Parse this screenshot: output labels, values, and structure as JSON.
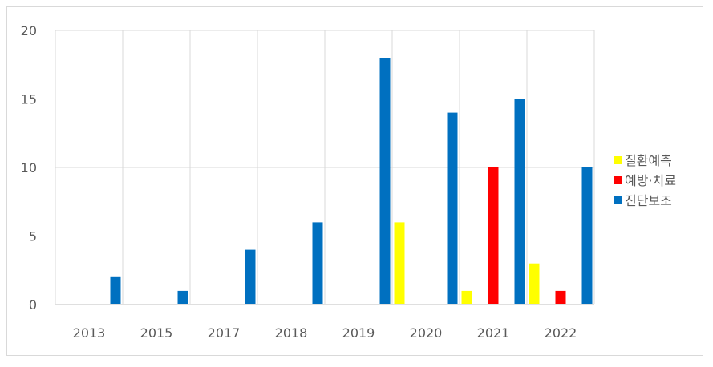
{
  "chart_data": {
    "type": "bar",
    "title": "",
    "xlabel": "",
    "ylabel": "",
    "categories": [
      "2013",
      "2015",
      "2017",
      "2018",
      "2019",
      "2020",
      "2021",
      "2022"
    ],
    "ylim": [
      0,
      20
    ],
    "yticks": [
      "0",
      "5",
      "10",
      "15",
      "20"
    ],
    "grid": true,
    "legend_position": "right",
    "series": [
      {
        "name": "질환예측",
        "color": "#FFFF00",
        "values": [
          0,
          0,
          0,
          0,
          0,
          6,
          1,
          3
        ]
      },
      {
        "name": "예방·치료",
        "color": "#FF0000",
        "values": [
          0,
          0,
          0,
          0,
          0,
          0,
          10,
          1
        ]
      },
      {
        "name": "진단보조",
        "color": "#0070C0",
        "values": [
          2,
          1,
          4,
          6,
          18,
          14,
          15,
          10
        ]
      }
    ]
  }
}
